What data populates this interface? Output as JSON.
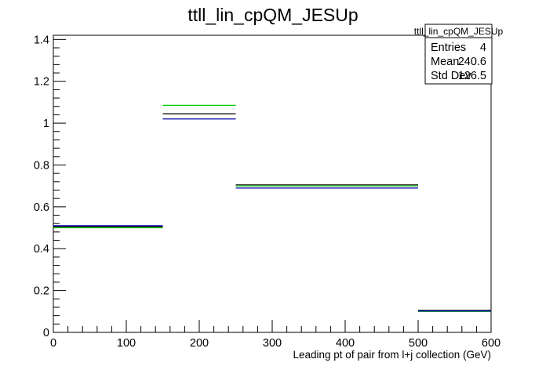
{
  "chart_data": {
    "type": "step",
    "title": "ttll_lin_cpQM_JESUp",
    "xlabel": "Leading pt of pair from l+j collection (GeV)",
    "ylabel": "",
    "xlim": [
      0,
      600
    ],
    "ylim": [
      0,
      1.42
    ],
    "x_ticks": [
      0,
      100,
      200,
      300,
      400,
      500,
      600
    ],
    "y_ticks": [
      0,
      0.2,
      0.4,
      0.6,
      0.8,
      1,
      1.2,
      1.4
    ],
    "x_tick_labels": [
      "0",
      "100",
      "200",
      "300",
      "400",
      "500",
      "600"
    ],
    "y_tick_labels": [
      "0",
      "0.2",
      "0.4",
      "0.6",
      "0.8",
      "1",
      "1.2",
      "1.4"
    ],
    "bin_edges": [
      0,
      150,
      250,
      500,
      600
    ],
    "series": [
      {
        "color": "#000000",
        "values": [
          0.505,
          1.045,
          0.705,
          0.105
        ]
      },
      {
        "color": "#00cc00",
        "values": [
          0.5,
          1.085,
          0.7,
          0.1
        ]
      },
      {
        "color": "#0000aa",
        "values": [
          0.51,
          1.02,
          0.69,
          0.102
        ]
      }
    ],
    "grid": false,
    "stats_box": {
      "name": "ttll_lin_cpQM_JESUp",
      "rows": [
        {
          "label": "Entries",
          "value": "4"
        },
        {
          "label": "Mean",
          "value": "240.6"
        },
        {
          "label": "Std Dev",
          "value": "126.5"
        }
      ]
    }
  }
}
